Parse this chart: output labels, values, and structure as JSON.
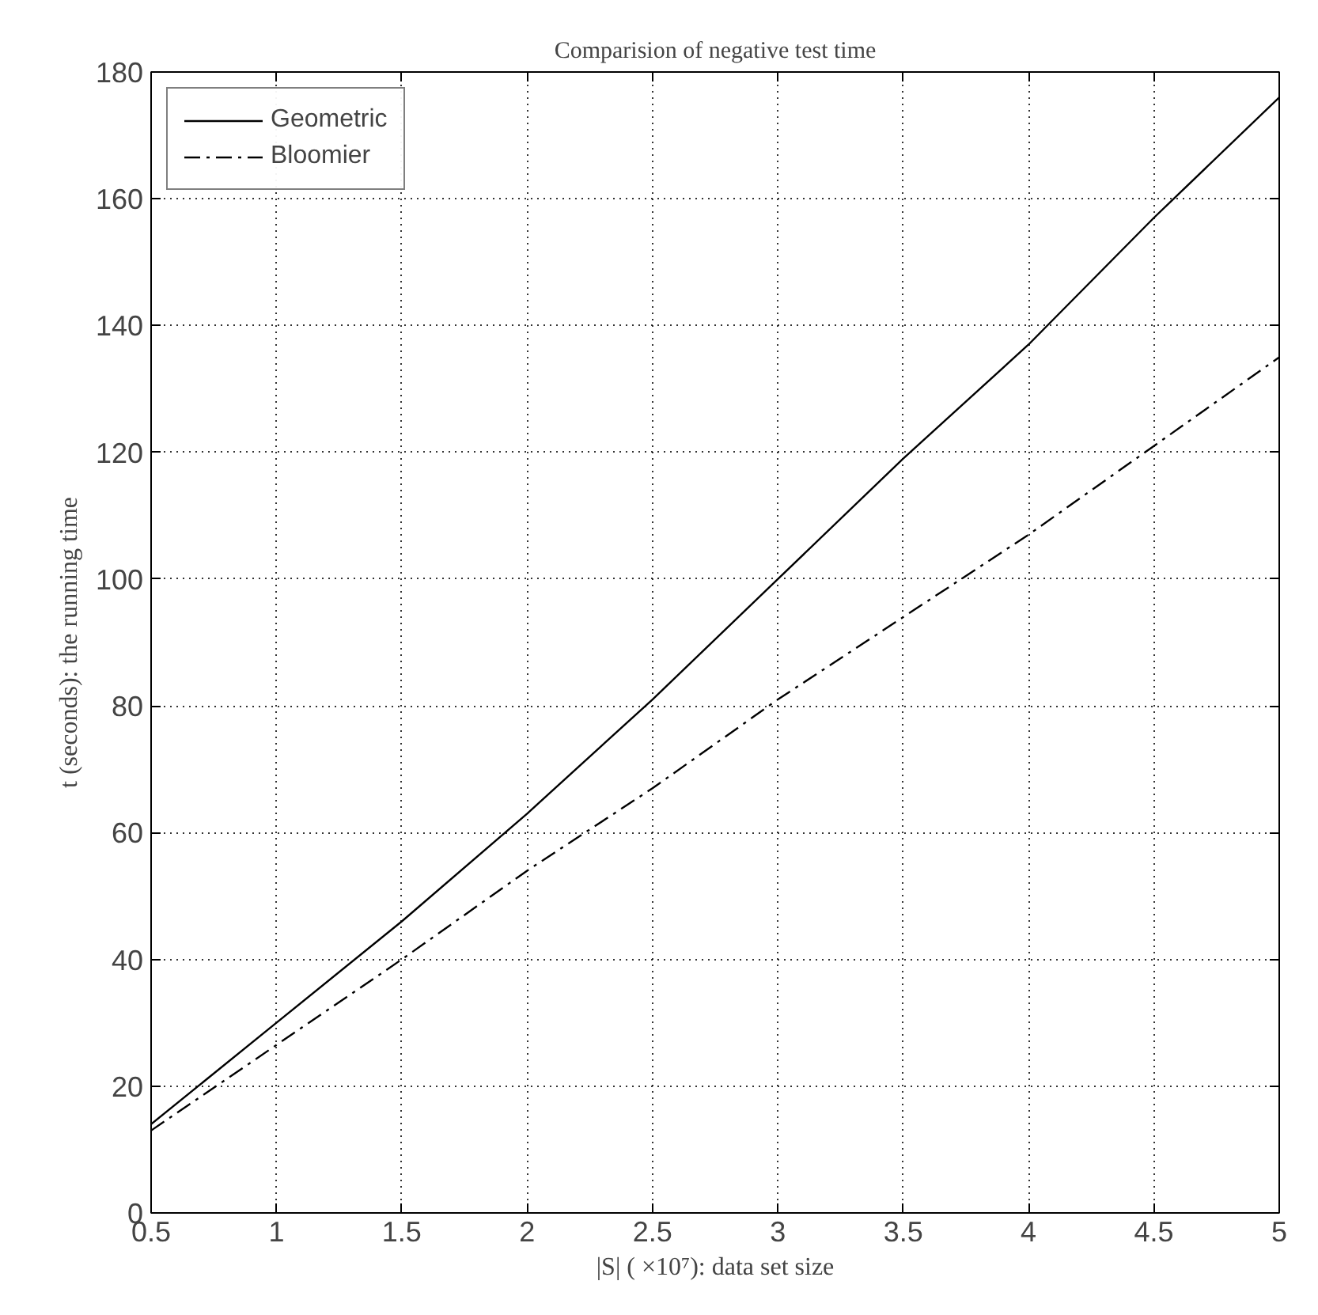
{
  "chart_data": {
    "type": "line",
    "title": "Comparision of negative test time",
    "xlabel": "|S| ( ×10⁷): data set size",
    "ylabel": "t (seconds): the running time",
    "x": [
      0.5,
      1,
      1.5,
      2,
      2.5,
      3,
      3.5,
      4,
      4.5,
      5
    ],
    "series": [
      {
        "name": "Geometric",
        "color": "#000000",
        "line_style": "solid",
        "values": [
          14,
          30,
          46,
          63,
          81,
          100,
          119,
          137,
          157,
          176
        ]
      },
      {
        "name": "Bloomier",
        "color": "#000000",
        "line_style": "dashdot",
        "values": [
          13,
          26.5,
          40,
          54,
          67,
          81,
          94,
          107,
          121,
          135
        ]
      }
    ],
    "xlim": [
      0.5,
      5
    ],
    "ylim": [
      0,
      180
    ],
    "xticks": [
      0.5,
      1,
      1.5,
      2,
      2.5,
      3,
      3.5,
      4,
      4.5,
      5
    ],
    "yticks": [
      0,
      20,
      40,
      60,
      80,
      100,
      120,
      140,
      160,
      180
    ],
    "grid": true,
    "legend": "top left",
    "marker": "none"
  }
}
